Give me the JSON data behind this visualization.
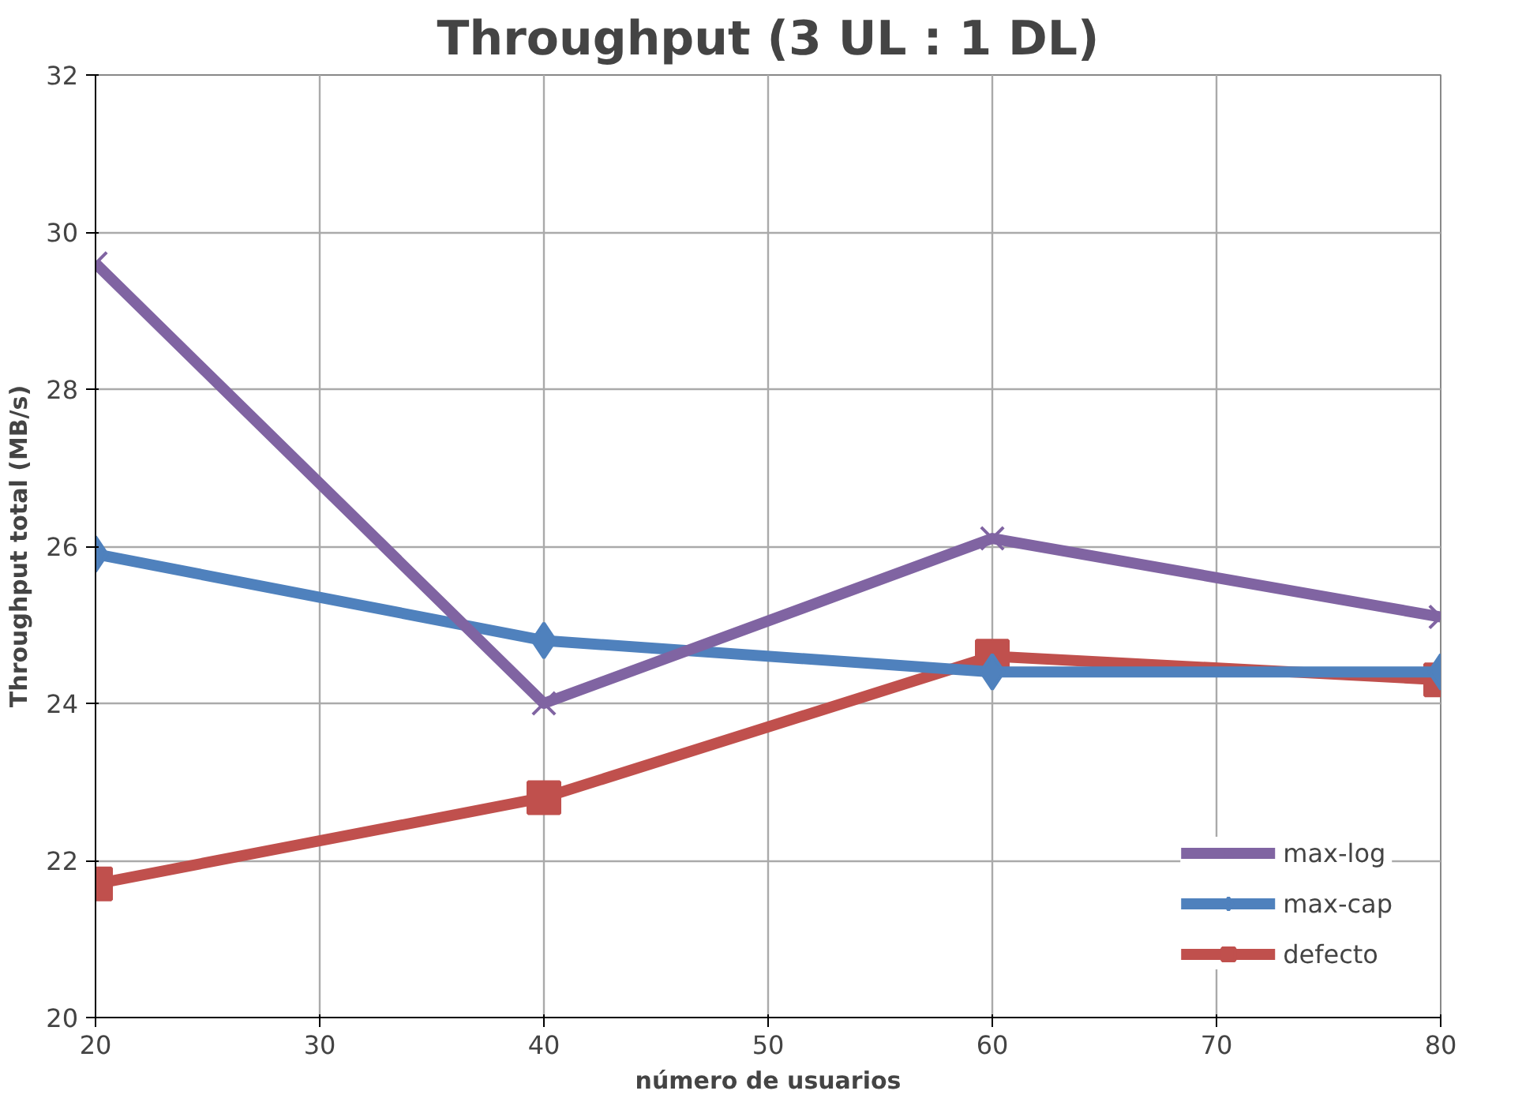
{
  "chart_data": {
    "type": "line",
    "title": "Throughput (3 UL : 1 DL)",
    "xlabel": "número de usuarios",
    "ylabel": "Throughput total (MB/s)",
    "x": [
      20,
      40,
      60,
      80
    ],
    "series": [
      {
        "name": "max-log",
        "color": "#8064a2",
        "marker": "cross",
        "values": [
          29.6,
          24.0,
          26.1,
          25.1
        ]
      },
      {
        "name": "max-cap",
        "color": "#4f81bd",
        "marker": "diamond",
        "values": [
          25.9,
          24.8,
          24.4,
          24.4
        ]
      },
      {
        "name": "defecto",
        "color": "#c0504d",
        "marker": "square",
        "values": [
          21.7,
          22.8,
          24.6,
          24.3
        ]
      }
    ],
    "xlim": [
      20,
      80
    ],
    "xticks": [
      20,
      30,
      40,
      50,
      60,
      70,
      80
    ],
    "ylim": [
      20,
      32
    ],
    "yticks": [
      20,
      22,
      24,
      26,
      28,
      30,
      32
    ],
    "grid": true,
    "legend": "bottom right",
    "line_style": "solid"
  }
}
